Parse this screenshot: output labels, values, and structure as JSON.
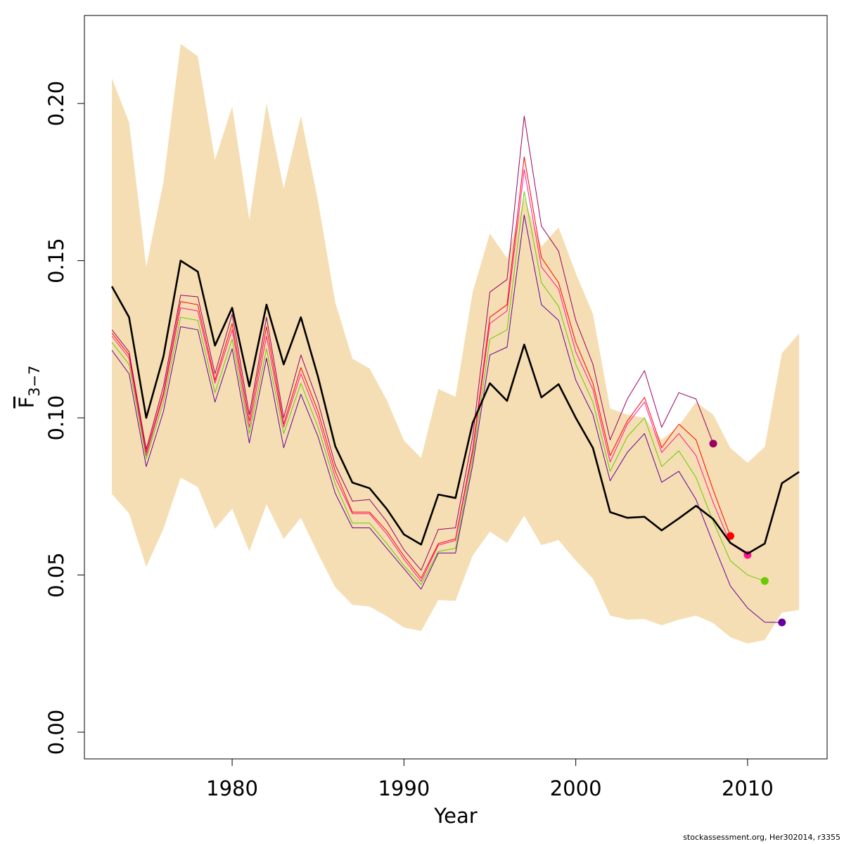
{
  "chart_data": {
    "type": "line",
    "xlabel": "Year",
    "ylabel": {
      "main": "F",
      "sub": "3−7"
    },
    "footer": "stockassessment.org, Her302014, r3355",
    "xlim": [
      1971.4,
      2014.63
    ],
    "ylim": [
      -0.0085,
      0.228
    ],
    "xticks": [
      1980,
      1990,
      2000,
      2010
    ],
    "yticks": [
      {
        "value": 0,
        "label": "0.00"
      },
      {
        "value": 0.05,
        "label": "0.05"
      },
      {
        "value": 0.1,
        "label": "0.10"
      },
      {
        "value": 0.15,
        "label": "0.15"
      },
      {
        "value": 0.2,
        "label": "0.20"
      }
    ],
    "x": [
      1973,
      1974,
      1975,
      1976,
      1977,
      1978,
      1979,
      1980,
      1981,
      1982,
      1983,
      1984,
      1985,
      1986,
      1987,
      1988,
      1989,
      1990,
      1991,
      1992,
      1993,
      1994,
      1995,
      1996,
      1997,
      1998,
      1999,
      2000,
      2001,
      2002,
      2003,
      2004,
      2005,
      2006,
      2007,
      2008,
      2009,
      2010,
      2011,
      2012,
      2013
    ],
    "band": {
      "color": "#f5deb3",
      "lower": [
        0.0758,
        0.0696,
        0.0526,
        0.0647,
        0.081,
        0.078,
        0.0647,
        0.0711,
        0.0575,
        0.0725,
        0.0615,
        0.0682,
        0.0568,
        0.0461,
        0.0405,
        0.04,
        0.0369,
        0.0333,
        0.0322,
        0.042,
        0.0418,
        0.0562,
        0.0638,
        0.0602,
        0.0689,
        0.0595,
        0.0611,
        0.0546,
        0.0488,
        0.0371,
        0.0358,
        0.036,
        0.034,
        0.0358,
        0.0371,
        0.0347,
        0.0302,
        0.0282,
        0.0293,
        0.038,
        0.0389
      ],
      "upper": [
        0.208,
        0.194,
        0.148,
        0.175,
        0.219,
        0.215,
        0.182,
        0.199,
        0.163,
        0.2,
        0.173,
        0.196,
        0.169,
        0.1367,
        0.1188,
        0.1157,
        0.1056,
        0.0928,
        0.0872,
        0.1092,
        0.1067,
        0.14,
        0.1586,
        0.1508,
        0.17,
        0.1545,
        0.1606,
        0.146,
        0.133,
        0.103,
        0.101,
        0.1,
        0.093,
        0.0975,
        0.105,
        0.101,
        0.0904,
        0.0857,
        0.0908,
        0.1206,
        0.1268
      ]
    },
    "series": [
      {
        "color": "#990066",
        "line_width": 1,
        "end_dot": true,
        "values": [
          0.128,
          0.121,
          0.09,
          0.11,
          0.139,
          0.1385,
          0.114,
          0.133,
          0.101,
          0.132,
          0.1,
          0.12,
          0.105,
          0.085,
          0.0735,
          0.074,
          0.067,
          0.058,
          0.0515,
          0.0645,
          0.065,
          0.094,
          0.14,
          0.144,
          0.196,
          0.161,
          0.153,
          0.131,
          0.117,
          0.093,
          0.106,
          0.115,
          0.097,
          0.108,
          0.106,
          0.0918,
          null,
          null,
          null,
          null,
          null
        ]
      },
      {
        "color": "#ff0000",
        "line_width": 1,
        "end_dot": true,
        "values": [
          0.127,
          0.12,
          0.089,
          0.108,
          0.137,
          0.136,
          0.112,
          0.13,
          0.099,
          0.129,
          0.098,
          0.116,
          0.102,
          0.083,
          0.07,
          0.07,
          0.064,
          0.056,
          0.049,
          0.06,
          0.0615,
          0.09,
          0.132,
          0.136,
          0.183,
          0.151,
          0.143,
          0.124,
          0.111,
          0.088,
          0.099,
          0.1065,
          0.0905,
          0.098,
          0.093,
          0.077,
          0.0624,
          null,
          null,
          null,
          null
        ]
      },
      {
        "color": "#ff1493",
        "line_width": 1,
        "end_dot": true,
        "values": [
          0.126,
          0.119,
          0.088,
          0.107,
          0.135,
          0.134,
          0.111,
          0.128,
          0.097,
          0.126,
          0.097,
          0.114,
          0.1,
          0.081,
          0.0695,
          0.0695,
          0.063,
          0.055,
          0.048,
          0.0595,
          0.061,
          0.089,
          0.13,
          0.134,
          0.179,
          0.148,
          0.141,
          0.121,
          0.109,
          0.086,
          0.098,
          0.105,
          0.089,
          0.095,
          0.088,
          0.073,
          0.06,
          0.0564,
          null,
          null,
          null
        ]
      },
      {
        "color": "#66cc00",
        "line_width": 1,
        "end_dot": true,
        "values": [
          0.124,
          0.117,
          0.087,
          0.105,
          0.132,
          0.131,
          0.108,
          0.125,
          0.095,
          0.122,
          0.095,
          0.111,
          0.097,
          0.079,
          0.0665,
          0.0665,
          0.06,
          0.053,
          0.047,
          0.0575,
          0.0585,
          0.087,
          0.125,
          0.128,
          0.172,
          0.143,
          0.1355,
          0.117,
          0.105,
          0.083,
          0.094,
          0.1,
          0.0845,
          0.0895,
          0.081,
          0.067,
          0.0545,
          0.05,
          0.0481,
          null,
          null
        ]
      },
      {
        "color": "#660099",
        "line_width": 1,
        "end_dot": true,
        "values": [
          0.1215,
          0.114,
          0.0845,
          0.102,
          0.129,
          0.128,
          0.105,
          0.122,
          0.092,
          0.119,
          0.0905,
          0.1075,
          0.094,
          0.076,
          0.065,
          0.065,
          0.0585,
          0.052,
          0.0455,
          0.057,
          0.057,
          0.085,
          0.12,
          0.1225,
          0.1645,
          0.136,
          0.131,
          0.112,
          0.101,
          0.08,
          0.089,
          0.095,
          0.0795,
          0.083,
          0.074,
          0.06,
          0.0465,
          0.0395,
          0.035,
          0.0349,
          null
        ]
      },
      {
        "color": "#000000",
        "line_width": 2.6,
        "end_dot": false,
        "values": [
          0.1418,
          0.132,
          0.1,
          0.1195,
          0.15,
          0.1465,
          0.123,
          0.135,
          0.11,
          0.136,
          0.117,
          0.132,
          0.113,
          0.091,
          0.0794,
          0.0776,
          0.071,
          0.0629,
          0.0597,
          0.0756,
          0.0745,
          0.0984,
          0.111,
          0.1054,
          0.1233,
          0.1065,
          0.1107,
          0.1,
          0.0904,
          0.07,
          0.0682,
          0.0685,
          0.0642,
          0.068,
          0.072,
          0.0678,
          0.0602,
          0.0568,
          0.06,
          0.0792,
          0.0828
        ]
      }
    ]
  }
}
